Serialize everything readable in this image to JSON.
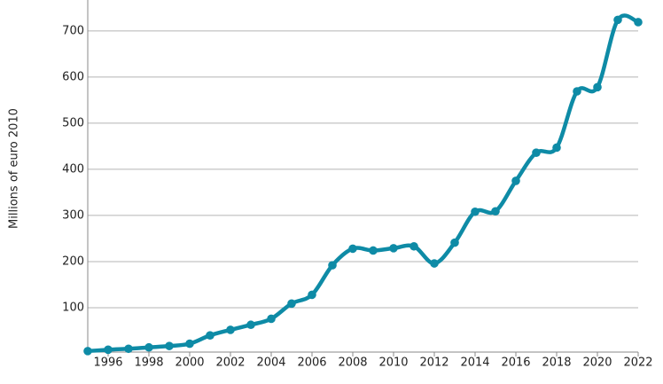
{
  "chart_data": {
    "type": "line",
    "ylabel": "Millions of euro 2010",
    "x": [
      1995,
      1996,
      1997,
      1998,
      1999,
      2000,
      2001,
      2002,
      2003,
      2004,
      2005,
      2006,
      2007,
      2008,
      2009,
      2010,
      2011,
      2012,
      2013,
      2014,
      2015,
      2016,
      2017,
      2018,
      2019,
      2020,
      2021,
      2022
    ],
    "series": [
      {
        "color": "#0e8ba6",
        "values": [
          6,
          9,
          11,
          14,
          17,
          22,
          40,
          52,
          63,
          76,
          109,
          128,
          192,
          228,
          224,
          229,
          233,
          196,
          241,
          308,
          309,
          375,
          436,
          447,
          569,
          578,
          724,
          719
        ]
      }
    ],
    "xlim": [
      1995,
      2022
    ],
    "ylim": [
      0,
      767
    ],
    "xticks": [
      1996,
      1998,
      2000,
      2002,
      2004,
      2006,
      2008,
      2010,
      2012,
      2014,
      2016,
      2018,
      2020,
      2022
    ],
    "yticks": [
      100,
      200,
      300,
      400,
      500,
      600,
      700
    ],
    "grid": true
  }
}
